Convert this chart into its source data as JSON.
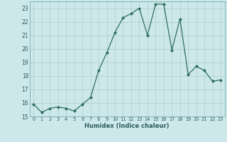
{
  "x": [
    0,
    1,
    2,
    3,
    4,
    5,
    6,
    7,
    8,
    9,
    10,
    11,
    12,
    13,
    14,
    15,
    16,
    17,
    18,
    19,
    20,
    21,
    22,
    23
  ],
  "y": [
    15.9,
    15.3,
    15.6,
    15.7,
    15.6,
    15.4,
    15.9,
    16.4,
    18.4,
    19.7,
    21.2,
    22.3,
    22.6,
    23.0,
    21.0,
    23.3,
    23.3,
    19.9,
    22.2,
    18.1,
    18.7,
    18.4,
    17.6,
    17.7
  ],
  "line_color": "#2e6e5e",
  "marker_color": "#2e6e5e",
  "bg_color": "#cce8ea",
  "grid_color": "#b0ccce",
  "xlabel": "Humidex (Indice chaleur)",
  "ylim": [
    15,
    23.5
  ],
  "xlim": [
    -0.5,
    23.5
  ],
  "yticks": [
    15,
    16,
    17,
    18,
    19,
    20,
    21,
    22,
    23
  ],
  "xticks": [
    0,
    1,
    2,
    3,
    4,
    5,
    6,
    7,
    8,
    9,
    10,
    11,
    12,
    13,
    14,
    15,
    16,
    17,
    18,
    19,
    20,
    21,
    22,
    23
  ]
}
